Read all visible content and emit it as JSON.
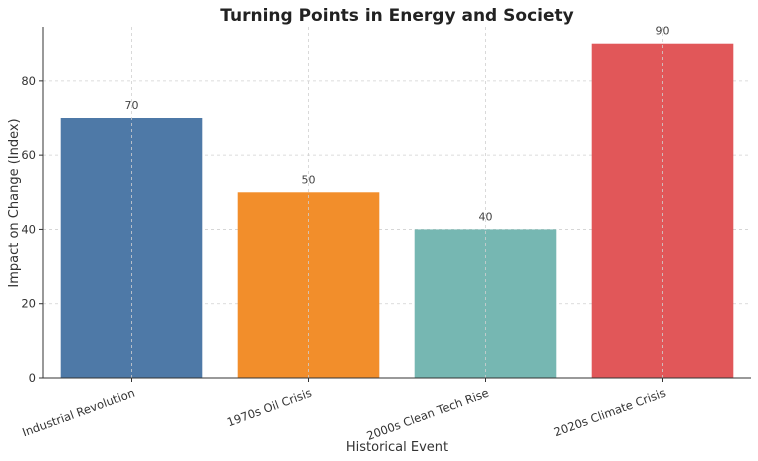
{
  "chart_data": {
    "type": "bar",
    "title": "Turning Points in Energy and Society",
    "xlabel": "Historical Event",
    "ylabel": "Impact on Change (Index)",
    "categories": [
      "Industrial Revolution",
      "1970s Oil Crisis",
      "2000s Clean Tech Rise",
      "2020s Climate Crisis"
    ],
    "values": [
      70,
      50,
      40,
      90
    ],
    "colors": [
      "#4e79a7",
      "#f28e2b",
      "#76b7b2",
      "#e15759"
    ],
    "data_labels": [
      "70",
      "50",
      "40",
      "90"
    ],
    "yticks": [
      0,
      20,
      40,
      60,
      80
    ],
    "ylim": [
      0,
      94.5
    ],
    "grid": true,
    "legend": "none"
  }
}
